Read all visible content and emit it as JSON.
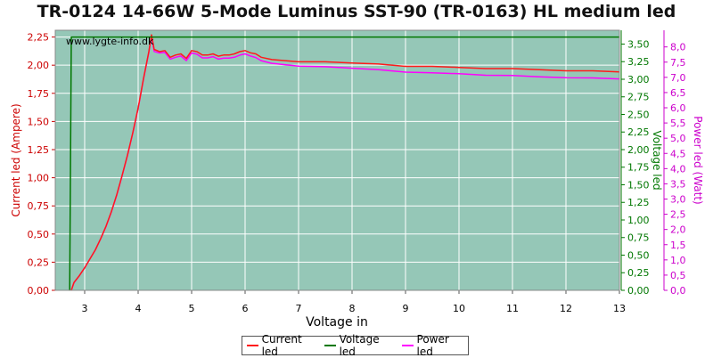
{
  "chart_data": {
    "type": "line",
    "title": "TR-0124 14-66W 5-Mode Luminus SST-90 (TR-0163) HL medium led",
    "watermark": "www.lygte-info.dk",
    "xlabel": "Voltage in",
    "ylabel_left": "Current led (Ampere)",
    "ylabel_right1": "Voltage led",
    "ylabel_right2": "Power led (Watt)",
    "xlim": [
      2.45,
      13
    ],
    "ylim_left": [
      0,
      2.31
    ],
    "ylim_right1": [
      0,
      3.696
    ],
    "ylim_right2": [
      0,
      8.547
    ],
    "x_ticks": [
      "3",
      "4",
      "5",
      "6",
      "7",
      "8",
      "9",
      "10",
      "11",
      "12",
      "13"
    ],
    "y_ticks_left": [
      "0,00",
      "0,25",
      "0,50",
      "0,75",
      "1,00",
      "1,25",
      "1,50",
      "1,75",
      "2,00",
      "2,25"
    ],
    "y_ticks_right1": [
      "0,00",
      "0,25",
      "0,50",
      "0,75",
      "1,00",
      "1,25",
      "1,50",
      "1,75",
      "2,00",
      "2,25",
      "2,50",
      "2,75",
      "3,00",
      "3,25",
      "3,50"
    ],
    "y_ticks_right2": [
      "0,0",
      "0,5",
      "1,0",
      "1,5",
      "2,0",
      "2,5",
      "3,0",
      "3,5",
      "4,0",
      "4,5",
      "5,0",
      "5,5",
      "6,0",
      "6,5",
      "7,0",
      "7,5",
      "8,0"
    ],
    "colors": {
      "plot_bg": "#95c7b7",
      "grid": "#ffffff",
      "current": "#ff1a1a",
      "voltage": "#007700",
      "power": "#ff00ff",
      "left_axis": "#cc0000",
      "right1_axis": "#007700",
      "right2_axis": "#cc00cc"
    },
    "series": [
      {
        "name": "Current led",
        "axis": "left",
        "x": [
          2.75,
          2.8,
          2.9,
          3.0,
          3.1,
          3.2,
          3.3,
          3.4,
          3.5,
          3.6,
          3.7,
          3.8,
          3.9,
          4.0,
          4.1,
          4.2,
          4.25,
          4.3,
          4.4,
          4.5,
          4.6,
          4.7,
          4.8,
          4.9,
          5.0,
          5.1,
          5.2,
          5.3,
          5.4,
          5.5,
          5.6,
          5.7,
          5.8,
          5.9,
          6.0,
          6.1,
          6.2,
          6.3,
          6.5,
          7.0,
          7.5,
          8.0,
          8.5,
          9.0,
          9.5,
          10.0,
          10.5,
          11.0,
          11.5,
          12.0,
          12.5,
          13.0
        ],
        "y": [
          0.0,
          0.07,
          0.13,
          0.2,
          0.28,
          0.36,
          0.46,
          0.57,
          0.7,
          0.85,
          1.02,
          1.2,
          1.4,
          1.62,
          1.88,
          2.12,
          2.27,
          2.14,
          2.12,
          2.13,
          2.07,
          2.09,
          2.1,
          2.06,
          2.13,
          2.12,
          2.09,
          2.09,
          2.1,
          2.08,
          2.09,
          2.09,
          2.1,
          2.12,
          2.13,
          2.11,
          2.1,
          2.07,
          2.05,
          2.03,
          2.03,
          2.02,
          2.01,
          1.99,
          1.99,
          1.98,
          1.97,
          1.97,
          1.96,
          1.95,
          1.95,
          1.94
        ]
      },
      {
        "name": "Voltage led",
        "axis": "right1",
        "x": [
          2.72,
          2.72,
          2.75,
          13.0
        ],
        "y": [
          0.0,
          0.0,
          3.6,
          3.6
        ]
      },
      {
        "name": "Power led",
        "axis": "right2",
        "x": [
          2.75,
          2.8,
          2.9,
          3.0,
          3.1,
          3.2,
          3.3,
          3.4,
          3.5,
          3.6,
          3.7,
          3.8,
          3.9,
          4.0,
          4.1,
          4.2,
          4.25,
          4.3,
          4.4,
          4.5,
          4.6,
          4.7,
          4.8,
          4.9,
          5.0,
          5.1,
          5.2,
          5.3,
          5.4,
          5.5,
          5.6,
          5.7,
          5.8,
          5.9,
          6.0,
          6.1,
          6.2,
          6.3,
          6.5,
          7.0,
          7.5,
          8.0,
          8.5,
          9.0,
          9.5,
          10.0,
          10.5,
          11.0,
          11.5,
          12.0,
          12.5,
          13.0
        ],
        "y": [
          0.0,
          0.25,
          0.48,
          0.74,
          1.04,
          1.33,
          1.7,
          2.1,
          2.58,
          3.13,
          3.76,
          4.43,
          5.17,
          5.98,
          6.94,
          7.82,
          8.36,
          7.85,
          7.8,
          7.82,
          7.6,
          7.66,
          7.7,
          7.55,
          7.8,
          7.76,
          7.64,
          7.64,
          7.68,
          7.6,
          7.63,
          7.63,
          7.66,
          7.73,
          7.77,
          7.7,
          7.65,
          7.55,
          7.46,
          7.37,
          7.35,
          7.3,
          7.25,
          7.17,
          7.15,
          7.12,
          7.07,
          7.06,
          7.02,
          6.99,
          6.98,
          6.95
        ]
      }
    ],
    "legend_position": "bottom-center"
  }
}
